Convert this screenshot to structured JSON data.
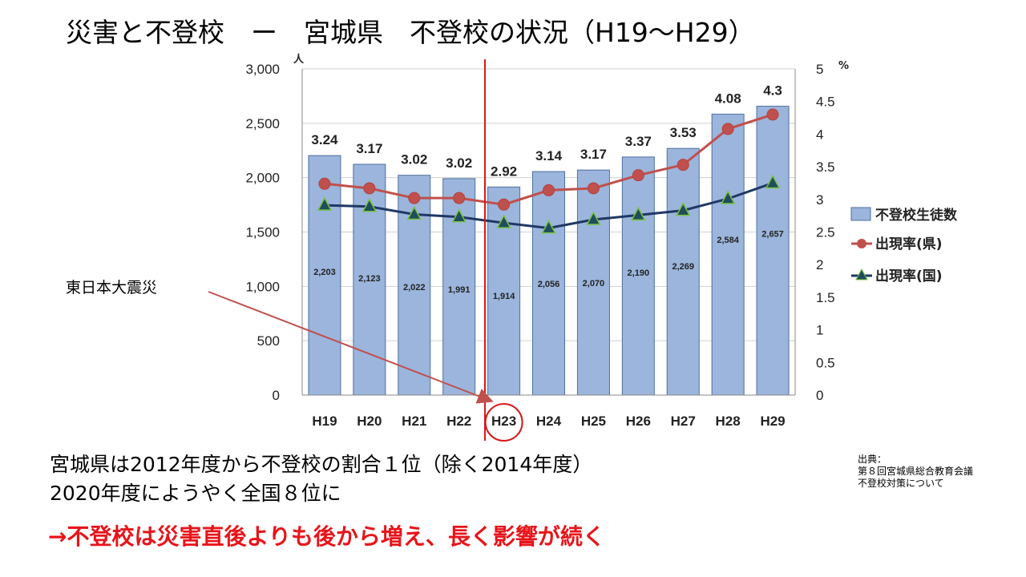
{
  "slide": {
    "title": "災害と不登校　ー　宮城県　不登校の状況（H19～H29）",
    "annotation": "東日本大震災",
    "line1": "宮城県は2012年度から不登校の割合１位（除く2014年度）",
    "line2": "2020年度にようやく全国８位に",
    "conclusion": "→不登校は災害直後よりも後から増え、長く影響が続く",
    "source": [
      "出典：",
      "第８回宮城県総合教育会議",
      "不登校対策について"
    ]
  },
  "colors": {
    "bar_fill": "#9bb5dc",
    "bar_stroke": "#4f6f9f",
    "line_pref": "#c0504d",
    "line_nation": "#1f3864",
    "marker_triangle": "#1f4e5a",
    "marker_triangle_edge": "#7ac143",
    "highlight": "#d7191c",
    "conclusion": "#e8141a"
  },
  "chart_data": {
    "type": "bar",
    "categories": [
      "H19",
      "H20",
      "H21",
      "H22",
      "H23",
      "H24",
      "H25",
      "H26",
      "H27",
      "H28",
      "H29"
    ],
    "y_unit": "人",
    "y2_unit": "%",
    "ylim": [
      0,
      3000
    ],
    "yticks": [
      0,
      500,
      1000,
      1500,
      2000,
      2500,
      3000
    ],
    "ytick_labels": [
      "0",
      "500",
      "1,000",
      "1,500",
      "2,000",
      "2,500",
      "3,000"
    ],
    "y2lim": [
      0,
      5
    ],
    "y2ticks": [
      0,
      0.5,
      1,
      1.5,
      2,
      2.5,
      3,
      3.5,
      4,
      4.5,
      5
    ],
    "y2tick_labels": [
      "0",
      "0.5",
      "1",
      "1.5",
      "2",
      "2.5",
      "3",
      "3.5",
      "4",
      "4.5",
      "5"
    ],
    "series": [
      {
        "name": "不登校生徒数",
        "kind": "bar",
        "axis": "left",
        "values": [
          2203,
          2123,
          2022,
          1991,
          1914,
          2056,
          2070,
          2190,
          2269,
          2584,
          2657
        ],
        "labels": [
          "2,203",
          "2,123",
          "2,022",
          "1,991",
          "1,914",
          "2,056",
          "2,070",
          "2,190",
          "2,269",
          "2,584",
          "2,657"
        ]
      },
      {
        "name": "出現率(県)",
        "kind": "line",
        "marker": "circle",
        "axis": "right",
        "values": [
          3.24,
          3.17,
          3.02,
          3.02,
          2.92,
          3.14,
          3.17,
          3.37,
          3.53,
          4.08,
          4.3
        ],
        "labels": [
          "3.24",
          "3.17",
          "3.02",
          "3.02",
          "2.92",
          "3.14",
          "3.17",
          "3.37",
          "3.53",
          "4.08",
          "4.3"
        ]
      },
      {
        "name": "出現率(国)",
        "kind": "line",
        "marker": "triangle",
        "axis": "right",
        "values": [
          2.91,
          2.89,
          2.77,
          2.73,
          2.64,
          2.56,
          2.69,
          2.76,
          2.83,
          3.01,
          3.25
        ]
      }
    ],
    "highlight_category": "H23",
    "grid": true,
    "legend_position": "right"
  }
}
